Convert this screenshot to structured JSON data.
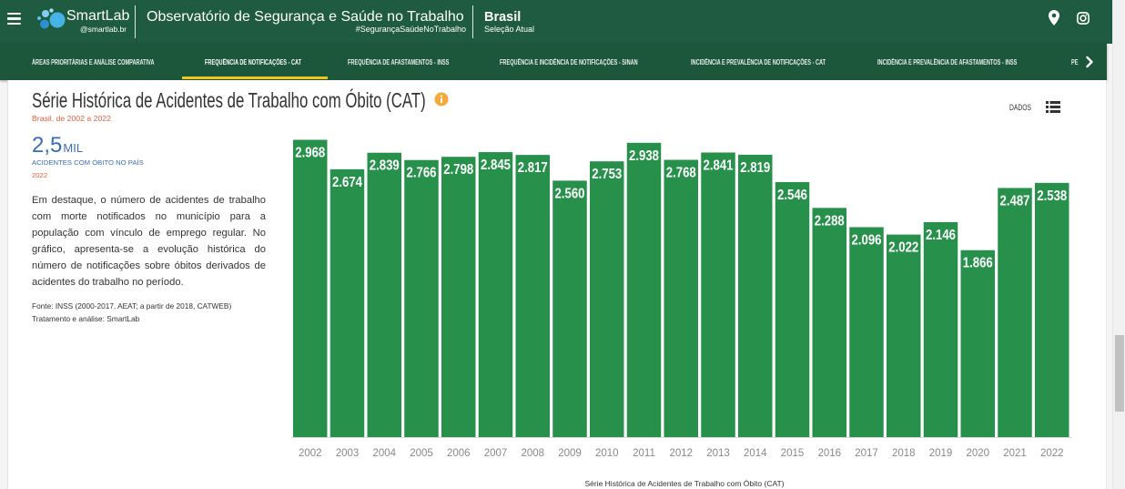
{
  "header": {
    "menu_icon": "menu-icon",
    "logo_icon": "smartlab-logo-icon",
    "logo_text": "SmartLab",
    "logo_handle": "@smartlab.br",
    "title": "Observatório de Segurança e Saúde no Trabalho",
    "hashtag": "#SegurançaSaúdeNoTrabalho",
    "location": "Brasil",
    "location_caption": "Seleção Atual",
    "location_icon": "map-pin-icon",
    "instagram_icon": "instagram-icon"
  },
  "nav": {
    "tabs": [
      {
        "label": "ÁREAS PRIORITÁRIAS E ANÁLISE COMPARATIVA",
        "active": false
      },
      {
        "label": "FREQUÊNCIA DE NOTIFICAÇÕES - CAT",
        "active": true
      },
      {
        "label": "FREQUÊNCIA DE AFASTAMENTOS - INSS",
        "active": false
      },
      {
        "label": "FREQUÊNCIA E INCIDÊNCIA DE NOTIFICAÇÕES - SINAN",
        "active": false
      },
      {
        "label": "INCIDÊNCIA E PREVALÊNCIA DE NOTIFICAÇÕES - CAT",
        "active": false
      },
      {
        "label": "INCIDÊNCIA E PREVALÊNCIA DE AFASTAMENTOS - INSS",
        "active": false
      },
      {
        "label": "PE",
        "active": false
      }
    ],
    "next_icon": "chevron-right-icon"
  },
  "card": {
    "info_icon": "info-icon",
    "data_button": "DADOS",
    "data_icon": "list-icon",
    "highlight": {
      "value": "2,5",
      "unit": "MIL",
      "label": "ACIDENTES COM ÓBITO NO PAÍS",
      "year": "2022"
    },
    "description": "Em destaque, o número de acidentes de trabalho com morte notificados no município para a população com vínculo de emprego regular. No gráfico, apresenta-se a evolução histórica do número de notificações sobre óbitos derivados de acidentes do trabalho no período.",
    "source": "Fonte: INSS (2000-2017, AEAT; a partir de 2018, CATWEB)",
    "credits": "Tratamento e análise: SmartLab"
  },
  "chart_data": {
    "type": "bar",
    "title": "Série Histórica de Acidentes de Trabalho com Óbito (CAT)",
    "subtitle": "Brasil, de 2002 a 2022",
    "caption": "Série Histórica de Acidentes de Trabalho com Óbito (CAT)",
    "categories": [
      "2002",
      "2003",
      "2004",
      "2005",
      "2006",
      "2007",
      "2008",
      "2009",
      "2010",
      "2011",
      "2012",
      "2013",
      "2014",
      "2015",
      "2016",
      "2017",
      "2018",
      "2019",
      "2020",
      "2021",
      "2022"
    ],
    "values": [
      2968,
      2674,
      2839,
      2766,
      2798,
      2845,
      2817,
      2560,
      2753,
      2938,
      2768,
      2841,
      2819,
      2546,
      2288,
      2096,
      2022,
      2146,
      1866,
      2487,
      2538
    ],
    "xlabel": "",
    "ylabel": "",
    "ylim": [
      0,
      3000
    ],
    "grid": false,
    "legend": "none",
    "data_labels": true
  },
  "colors": {
    "header_bg": "#1f5b40",
    "nav_bg": "#1c563b",
    "tab_underline": "#f0c419",
    "bar": "#27914b",
    "highlight": "#3a6db3",
    "accent_red": "#e2603b",
    "info": "#f4a93b"
  }
}
